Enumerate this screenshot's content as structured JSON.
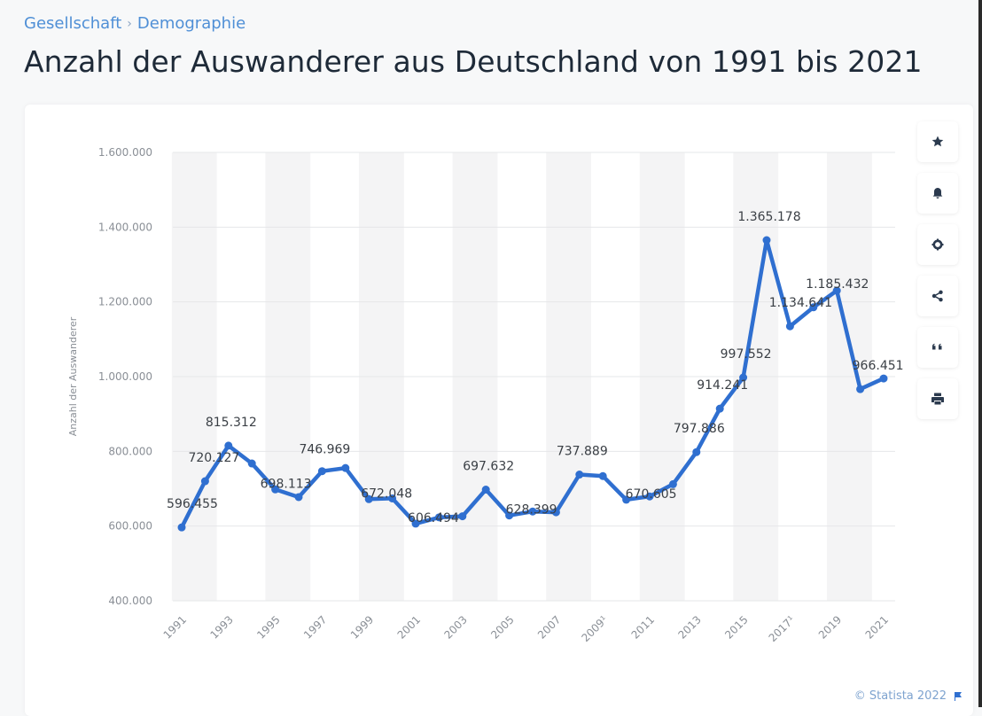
{
  "breadcrumb": [
    "Gesellschaft",
    "Demographie"
  ],
  "breadcrumb_sep": "›",
  "title": "Anzahl der Auswanderer aus Deutschland von 1991 bis 2021",
  "toolbar": [
    {
      "icon": "star-icon",
      "label": "Favorit"
    },
    {
      "icon": "bell-icon",
      "label": "Benachrichtigung"
    },
    {
      "icon": "gear-icon",
      "label": "Einstellungen"
    },
    {
      "icon": "share-icon",
      "label": "Teilen"
    },
    {
      "icon": "quote-icon",
      "label": "Zitieren"
    },
    {
      "icon": "print-icon",
      "label": "Drucken"
    }
  ],
  "footer": {
    "copyright": "© Statista 2022"
  },
  "colors": {
    "line": "#2f6fd0",
    "band": "#f4f4f5",
    "grid": "#e6e7e9",
    "accent": "#4f8fd6"
  },
  "chart_data": {
    "type": "line",
    "title": "Anzahl der Auswanderer aus Deutschland von 1991 bis 2021",
    "xlabel": "",
    "ylabel": "Anzahl der Auswanderer",
    "ylim": [
      400000,
      1600000
    ],
    "yticks": [
      400000,
      600000,
      800000,
      1000000,
      1200000,
      1400000,
      1600000
    ],
    "ytick_labels": [
      "400.000",
      "600.000",
      "800.000",
      "1.000.000",
      "1.200.000",
      "1.400.000",
      "1.600.000"
    ],
    "x": [
      1991,
      1992,
      1993,
      1994,
      1995,
      1996,
      1997,
      1998,
      1999,
      2000,
      2001,
      2002,
      2003,
      2004,
      2005,
      2006,
      2007,
      2008,
      2009,
      2010,
      2011,
      2012,
      2013,
      2014,
      2015,
      2016,
      2017,
      2018,
      2019,
      2020,
      2021
    ],
    "xtick_labels": [
      "1991",
      "1993",
      "1995",
      "1997",
      "1999",
      "2001",
      "2003",
      "2005",
      "2007",
      "2009¹",
      "2011",
      "2013",
      "2015",
      "2017¹",
      "2019",
      "2021"
    ],
    "grid": true,
    "legend": "none",
    "series": [
      {
        "name": "Anzahl der Auswanderer",
        "values": [
          596455,
          720127,
          815312,
          767555,
          698113,
          677494,
          746969,
          755358,
          672048,
          674038,
          606494,
          623255,
          626330,
          697632,
          628399,
          639064,
          636854,
          737889,
          733796,
          670605,
          679261,
          712042,
          797886,
          914241,
          997552,
          1365178,
          1134641,
          1185432,
          1230000,
          966451,
          995000
        ]
      }
    ],
    "data_labels": [
      {
        "year": 1991,
        "text": "596.455"
      },
      {
        "year": 1992,
        "text": "720.127"
      },
      {
        "year": 1993,
        "text": "815.312"
      },
      {
        "year": 1995,
        "text": "698.113"
      },
      {
        "year": 1997,
        "text": "746.969"
      },
      {
        "year": 1999,
        "text": "672.048"
      },
      {
        "year": 2001,
        "text": "606.494"
      },
      {
        "year": 2004,
        "text": "697.632"
      },
      {
        "year": 2005,
        "text": "628.399"
      },
      {
        "year": 2008,
        "text": "737.889"
      },
      {
        "year": 2010,
        "text": "670.605"
      },
      {
        "year": 2013,
        "text": "797.886"
      },
      {
        "year": 2014,
        "text": "914.241"
      },
      {
        "year": 2015,
        "text": "997.552"
      },
      {
        "year": 2016,
        "text": "1.365.178"
      },
      {
        "year": 2017,
        "text": "1.134.641"
      },
      {
        "year": 2018,
        "text": "1.185.432"
      },
      {
        "year": 2020,
        "text": "966.451"
      }
    ]
  }
}
